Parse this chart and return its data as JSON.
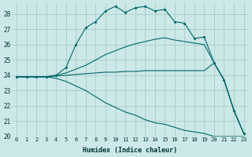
{
  "xlabel": "Humidex (Indice chaleur)",
  "ylabel": "",
  "xlim": [
    -0.5,
    23.5
  ],
  "ylim": [
    20,
    28.7
  ],
  "yticks": [
    20,
    21,
    22,
    23,
    24,
    25,
    26,
    27,
    28
  ],
  "xticks": [
    0,
    1,
    2,
    3,
    4,
    5,
    6,
    7,
    8,
    9,
    10,
    11,
    12,
    13,
    14,
    15,
    16,
    17,
    18,
    19,
    20,
    21,
    22,
    23
  ],
  "background_color": "#cce8e8",
  "grid_color": "#aacccc",
  "line_color": "#006868",
  "lines": [
    {
      "x": [
        0,
        1,
        2,
        3,
        4,
        5,
        6,
        7,
        8,
        9,
        10,
        11,
        12,
        13,
        14,
        15,
        16,
        17,
        18,
        19,
        20,
        21,
        22,
        23
      ],
      "y": [
        23.9,
        23.9,
        23.9,
        23.9,
        24.0,
        24.5,
        26.0,
        27.1,
        27.5,
        28.2,
        28.5,
        28.1,
        28.4,
        28.5,
        28.2,
        28.3,
        27.5,
        27.4,
        26.4,
        26.5,
        24.8,
        23.7,
        21.7,
        20.2
      ],
      "marker": true
    },
    {
      "x": [
        0,
        1,
        2,
        3,
        4,
        5,
        6,
        7,
        8,
        9,
        10,
        11,
        12,
        13,
        14,
        15,
        16,
        17,
        18,
        19,
        20,
        21,
        22,
        23
      ],
      "y": [
        23.9,
        23.9,
        23.9,
        23.9,
        24.0,
        24.15,
        24.4,
        24.65,
        25.0,
        25.35,
        25.6,
        25.85,
        26.05,
        26.2,
        26.35,
        26.45,
        26.3,
        26.2,
        26.1,
        26.0,
        24.8,
        23.7,
        21.7,
        20.2
      ],
      "marker": false
    },
    {
      "x": [
        0,
        1,
        2,
        3,
        4,
        5,
        6,
        7,
        8,
        9,
        10,
        11,
        12,
        13,
        14,
        15,
        16,
        17,
        18,
        19,
        20,
        21,
        22,
        23
      ],
      "y": [
        23.9,
        23.9,
        23.9,
        23.9,
        23.95,
        24.0,
        24.05,
        24.1,
        24.15,
        24.2,
        24.2,
        24.25,
        24.25,
        24.3,
        24.3,
        24.3,
        24.3,
        24.3,
        24.3,
        24.3,
        24.8,
        23.7,
        21.7,
        20.2
      ],
      "marker": false
    },
    {
      "x": [
        0,
        1,
        2,
        3,
        4,
        5,
        6,
        7,
        8,
        9,
        10,
        11,
        12,
        13,
        14,
        15,
        16,
        17,
        18,
        19,
        20,
        21,
        22,
        23
      ],
      "y": [
        23.9,
        23.9,
        23.9,
        23.9,
        23.8,
        23.6,
        23.3,
        23.0,
        22.6,
        22.2,
        21.9,
        21.6,
        21.4,
        21.1,
        20.9,
        20.8,
        20.6,
        20.4,
        20.3,
        20.2,
        20.0,
        20.0,
        20.0,
        20.0
      ],
      "marker": false
    }
  ]
}
